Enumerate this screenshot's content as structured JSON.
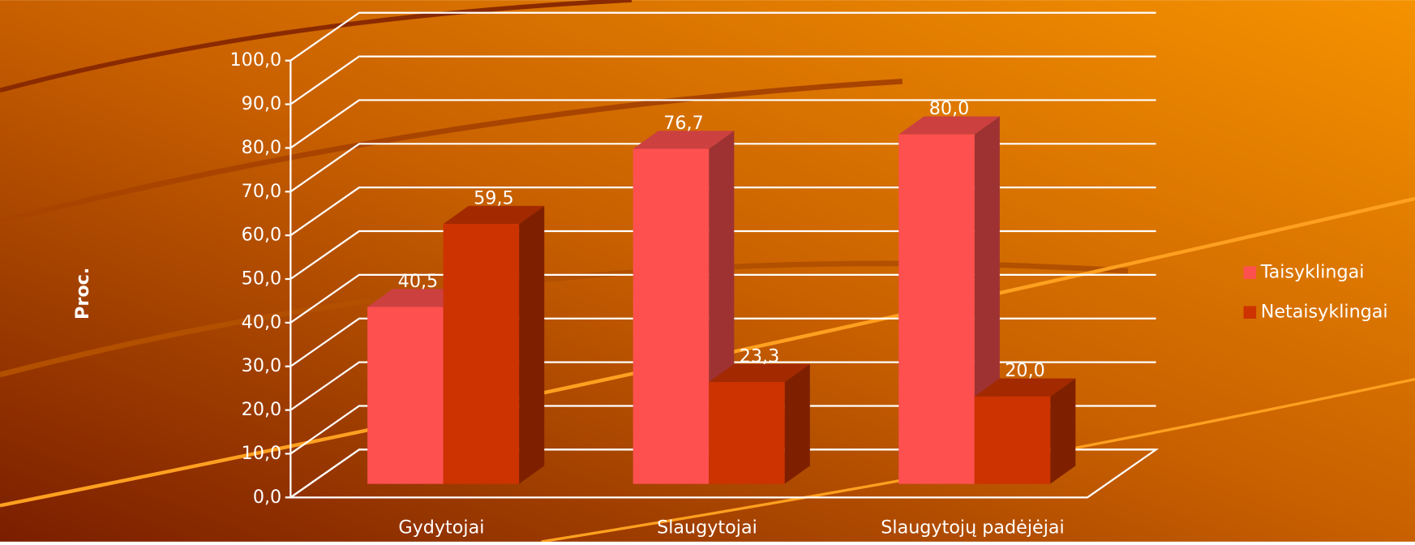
{
  "chart_data": {
    "type": "bar3d",
    "y_label": "Proc.",
    "categories": [
      "Gydytojai",
      "Slaugytojai",
      "Slaugytojų padėjėjai"
    ],
    "series": [
      {
        "name": "Taisyklingai",
        "color": "#ff5050",
        "values": [
          40.5,
          76.7,
          80.0
        ],
        "value_labels": [
          "40,5",
          "76,7",
          "80,0"
        ]
      },
      {
        "name": "Netaisyklingai",
        "color": "#cc3300",
        "values": [
          59.5,
          23.3,
          20.0
        ],
        "value_labels": [
          "59,5",
          "23,3",
          "20,0"
        ]
      }
    ],
    "ylim": [
      0,
      100
    ],
    "yticks": [
      {
        "value": 0,
        "label": "0,0"
      },
      {
        "value": 10,
        "label": "10,0"
      },
      {
        "value": 20,
        "label": "20,0"
      },
      {
        "value": 30,
        "label": "30,0"
      },
      {
        "value": 40,
        "label": "40,0"
      },
      {
        "value": 50,
        "label": "50,0"
      },
      {
        "value": 60,
        "label": "60,0"
      },
      {
        "value": 70,
        "label": "70,0"
      },
      {
        "value": 80,
        "label": "80,0"
      },
      {
        "value": 90,
        "label": "90,0"
      },
      {
        "value": 100,
        "label": "100,0"
      }
    ],
    "grid": true,
    "legend": "right"
  }
}
